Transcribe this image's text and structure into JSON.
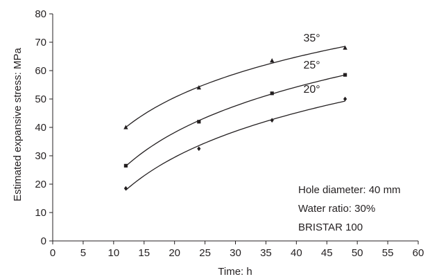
{
  "chart_data": {
    "type": "scatter",
    "xlabel": "Time: h",
    "ylabel": "Estimated expansive stress: MPa",
    "xlim": [
      0,
      60
    ],
    "ylim": [
      0,
      80
    ],
    "xticks": [
      0,
      5,
      10,
      15,
      20,
      25,
      30,
      35,
      40,
      45,
      50,
      55,
      60
    ],
    "yticks": [
      0,
      10,
      20,
      30,
      40,
      50,
      60,
      70,
      80
    ],
    "grid": false,
    "trendline": "logarithmic",
    "series": [
      {
        "name": "35°",
        "marker": "triangle",
        "x": [
          12,
          24,
          36,
          48
        ],
        "y": [
          40,
          54,
          63.5,
          68
        ]
      },
      {
        "name": "25°",
        "marker": "square",
        "x": [
          12,
          24,
          36,
          48
        ],
        "y": [
          26.5,
          42,
          52,
          58.5
        ]
      },
      {
        "name": "20°",
        "marker": "diamond",
        "x": [
          12,
          24,
          36,
          48
        ],
        "y": [
          18.5,
          32.5,
          42.5,
          50
        ]
      }
    ],
    "annotations": [
      "Hole diameter: 40 mm",
      "Water ratio: 30%",
      "BRISTAR 100"
    ],
    "colors": {
      "ink": "#231f20"
    }
  }
}
